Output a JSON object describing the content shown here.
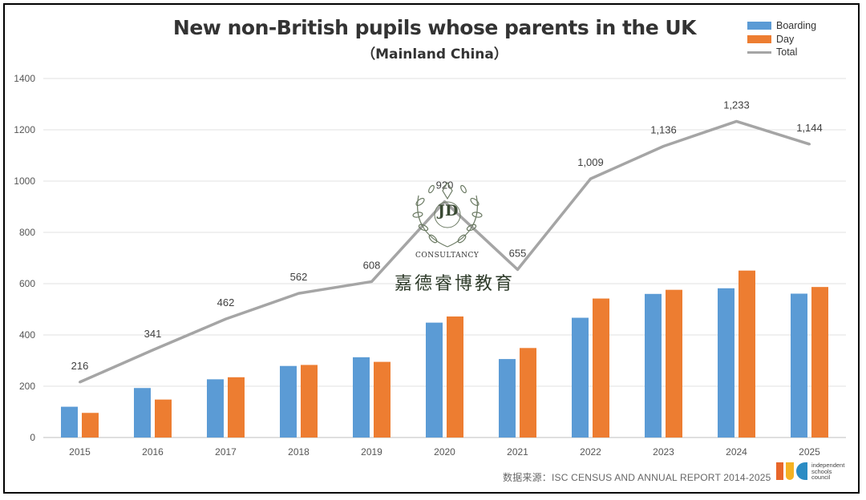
{
  "chart_data": {
    "type": "bar",
    "title": "New non-British pupils whose parents  in the UK",
    "subtitle": "（Mainland China）",
    "categories": [
      "2015",
      "2016",
      "2017",
      "2018",
      "2019",
      "2020",
      "2021",
      "2022",
      "2023",
      "2024",
      "2025"
    ],
    "series": [
      {
        "name": "Boarding",
        "type": "bar",
        "color": "#5b9bd5",
        "values": [
          120,
          193,
          227,
          279,
          313,
          448,
          306,
          467,
          560,
          582,
          561
        ]
      },
      {
        "name": "Day",
        "type": "bar",
        "color": "#ed7d31",
        "values": [
          96,
          148,
          235,
          283,
          295,
          472,
          349,
          542,
          576,
          651,
          587
        ]
      },
      {
        "name": "Total",
        "type": "line",
        "color": "#a5a5a5",
        "values": [
          216,
          341,
          462,
          562,
          608,
          920,
          655,
          1009,
          1136,
          1233,
          1144
        ],
        "labels": [
          "216",
          "341",
          "462",
          "562",
          "608",
          "920",
          "655",
          "1,009",
          "1,136",
          "1,233",
          "1,144"
        ]
      }
    ],
    "yticks": [
      "0",
      "200",
      "400",
      "600",
      "800",
      "1000",
      "1200",
      "1400"
    ],
    "ylim": [
      0,
      1400
    ],
    "grid": true,
    "legend_position": "top-right",
    "xlabel": "",
    "ylabel": ""
  },
  "watermark": {
    "initials": "JD",
    "consultancy": "CONSULTANCY",
    "chinese_name": "嘉德睿博教育"
  },
  "source": {
    "text": "数据来源：ISC CENSUS AND ANNUAL REPORT 2014-2025",
    "logo_text": "independent schools council"
  }
}
